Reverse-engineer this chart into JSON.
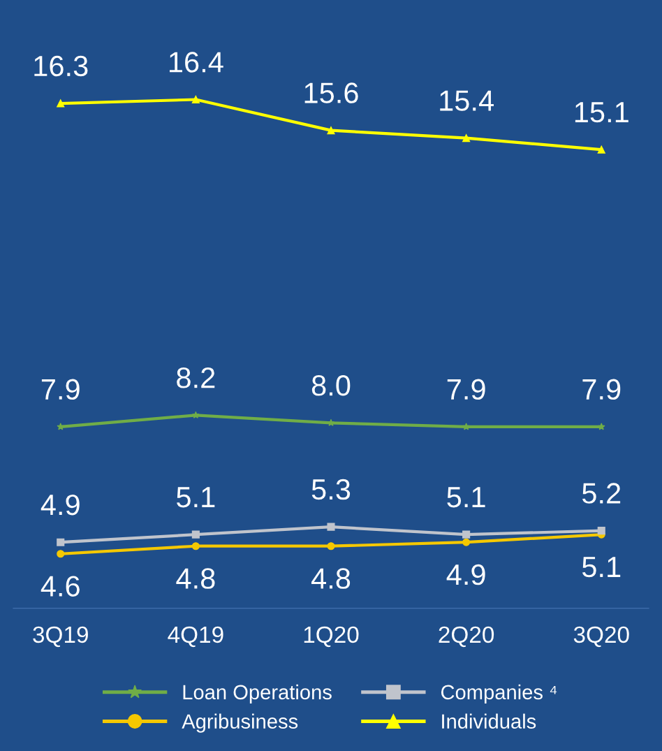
{
  "chart_data": {
    "type": "line",
    "categories": [
      "3Q19",
      "4Q19",
      "1Q20",
      "2Q20",
      "3Q20"
    ],
    "series": [
      {
        "name": "Loan Operations",
        "color": "#70ad47",
        "marker": "star",
        "values": [
          7.9,
          8.2,
          8.0,
          7.9,
          7.9
        ],
        "value_labels": [
          "7.9",
          "8.2",
          "8.0",
          "7.9",
          "7.9"
        ]
      },
      {
        "name": "Companies ⁴",
        "color": "#c0c4cc",
        "marker": "square",
        "values": [
          4.9,
          5.1,
          5.3,
          5.1,
          5.2
        ],
        "value_labels": [
          "4.9",
          "5.1",
          "5.3",
          "5.1",
          "5.2"
        ]
      },
      {
        "name": "Agribusiness",
        "color": "#f5c800",
        "marker": "circle",
        "values": [
          4.6,
          4.8,
          4.8,
          4.9,
          5.1
        ],
        "value_labels": [
          "4.6",
          "4.8",
          "4.8",
          "4.9",
          "5.1"
        ]
      },
      {
        "name": "Individuals",
        "color": "#ffff00",
        "marker": "triangle",
        "values": [
          16.3,
          16.4,
          15.6,
          15.4,
          15.1
        ],
        "value_labels": [
          "16.3",
          "16.4",
          "15.6",
          "15.4",
          "15.1"
        ]
      }
    ],
    "tick_labels": "x",
    "grid": false,
    "legend": "bottom",
    "line_style": "solid"
  }
}
